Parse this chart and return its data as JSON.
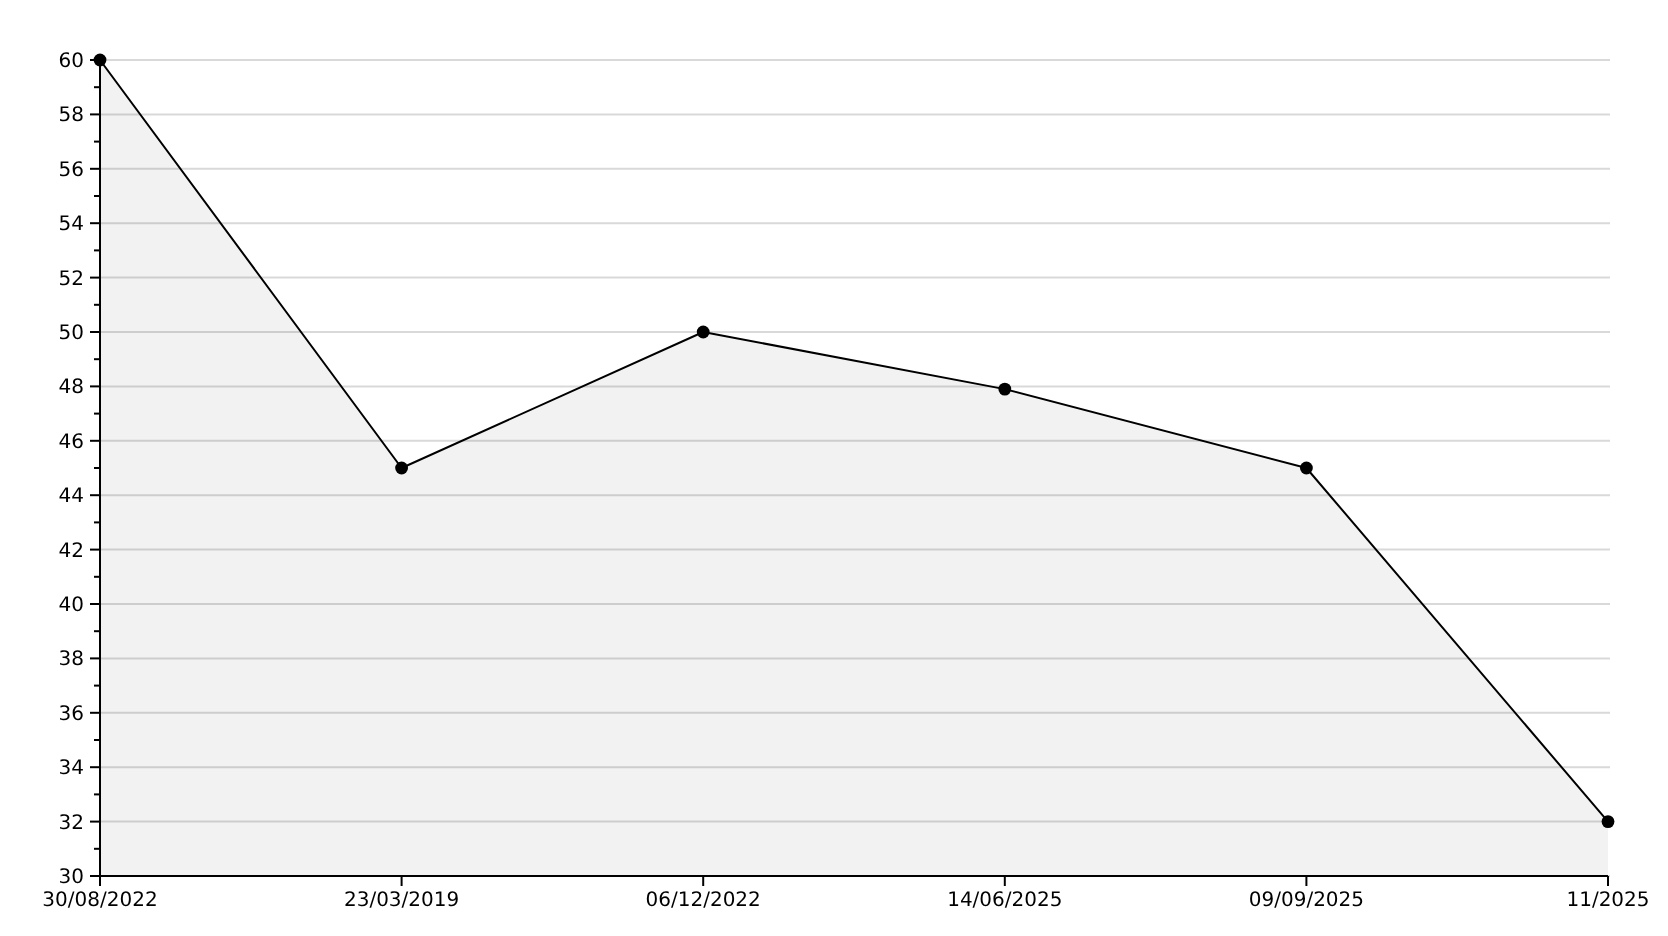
{
  "chart_data": {
    "type": "area",
    "categories": [
      "30/08/2022",
      "23/03/2019",
      "06/12/2022",
      "14/06/2025",
      "09/09/2025",
      "11/2025"
    ],
    "series": [
      {
        "color": "#000000",
        "values": [
          60,
          45,
          50,
          47.9,
          45,
          32
        ]
      }
    ],
    "ylim": [
      30,
      60
    ],
    "yticks": [
      30,
      {
        "value": 31,
        "label": null
      },
      32,
      {
        "value": 33,
        "label": null
      },
      34,
      {
        "value": 35,
        "label": null
      },
      36,
      {
        "value": 37,
        "label": null
      },
      38,
      {
        "value": 39,
        "label": null
      },
      40,
      {
        "value": 41,
        "label": null
      },
      42,
      {
        "value": 43,
        "label": null
      },
      44,
      {
        "value": 45,
        "label": null
      },
      46,
      {
        "value": 47,
        "label": null
      },
      48,
      {
        "value": 49,
        "label": null
      },
      50,
      {
        "value": 51,
        "label": null
      },
      52,
      {
        "value": 53,
        "label": null
      },
      54,
      {
        "value": 55,
        "label": null
      },
      56,
      {
        "value": 57,
        "label": null
      },
      58,
      {
        "value": 59,
        "label": null
      },
      60
    ],
    "grid": "y",
    "marker": "circle",
    "line_style": "solid"
  }
}
